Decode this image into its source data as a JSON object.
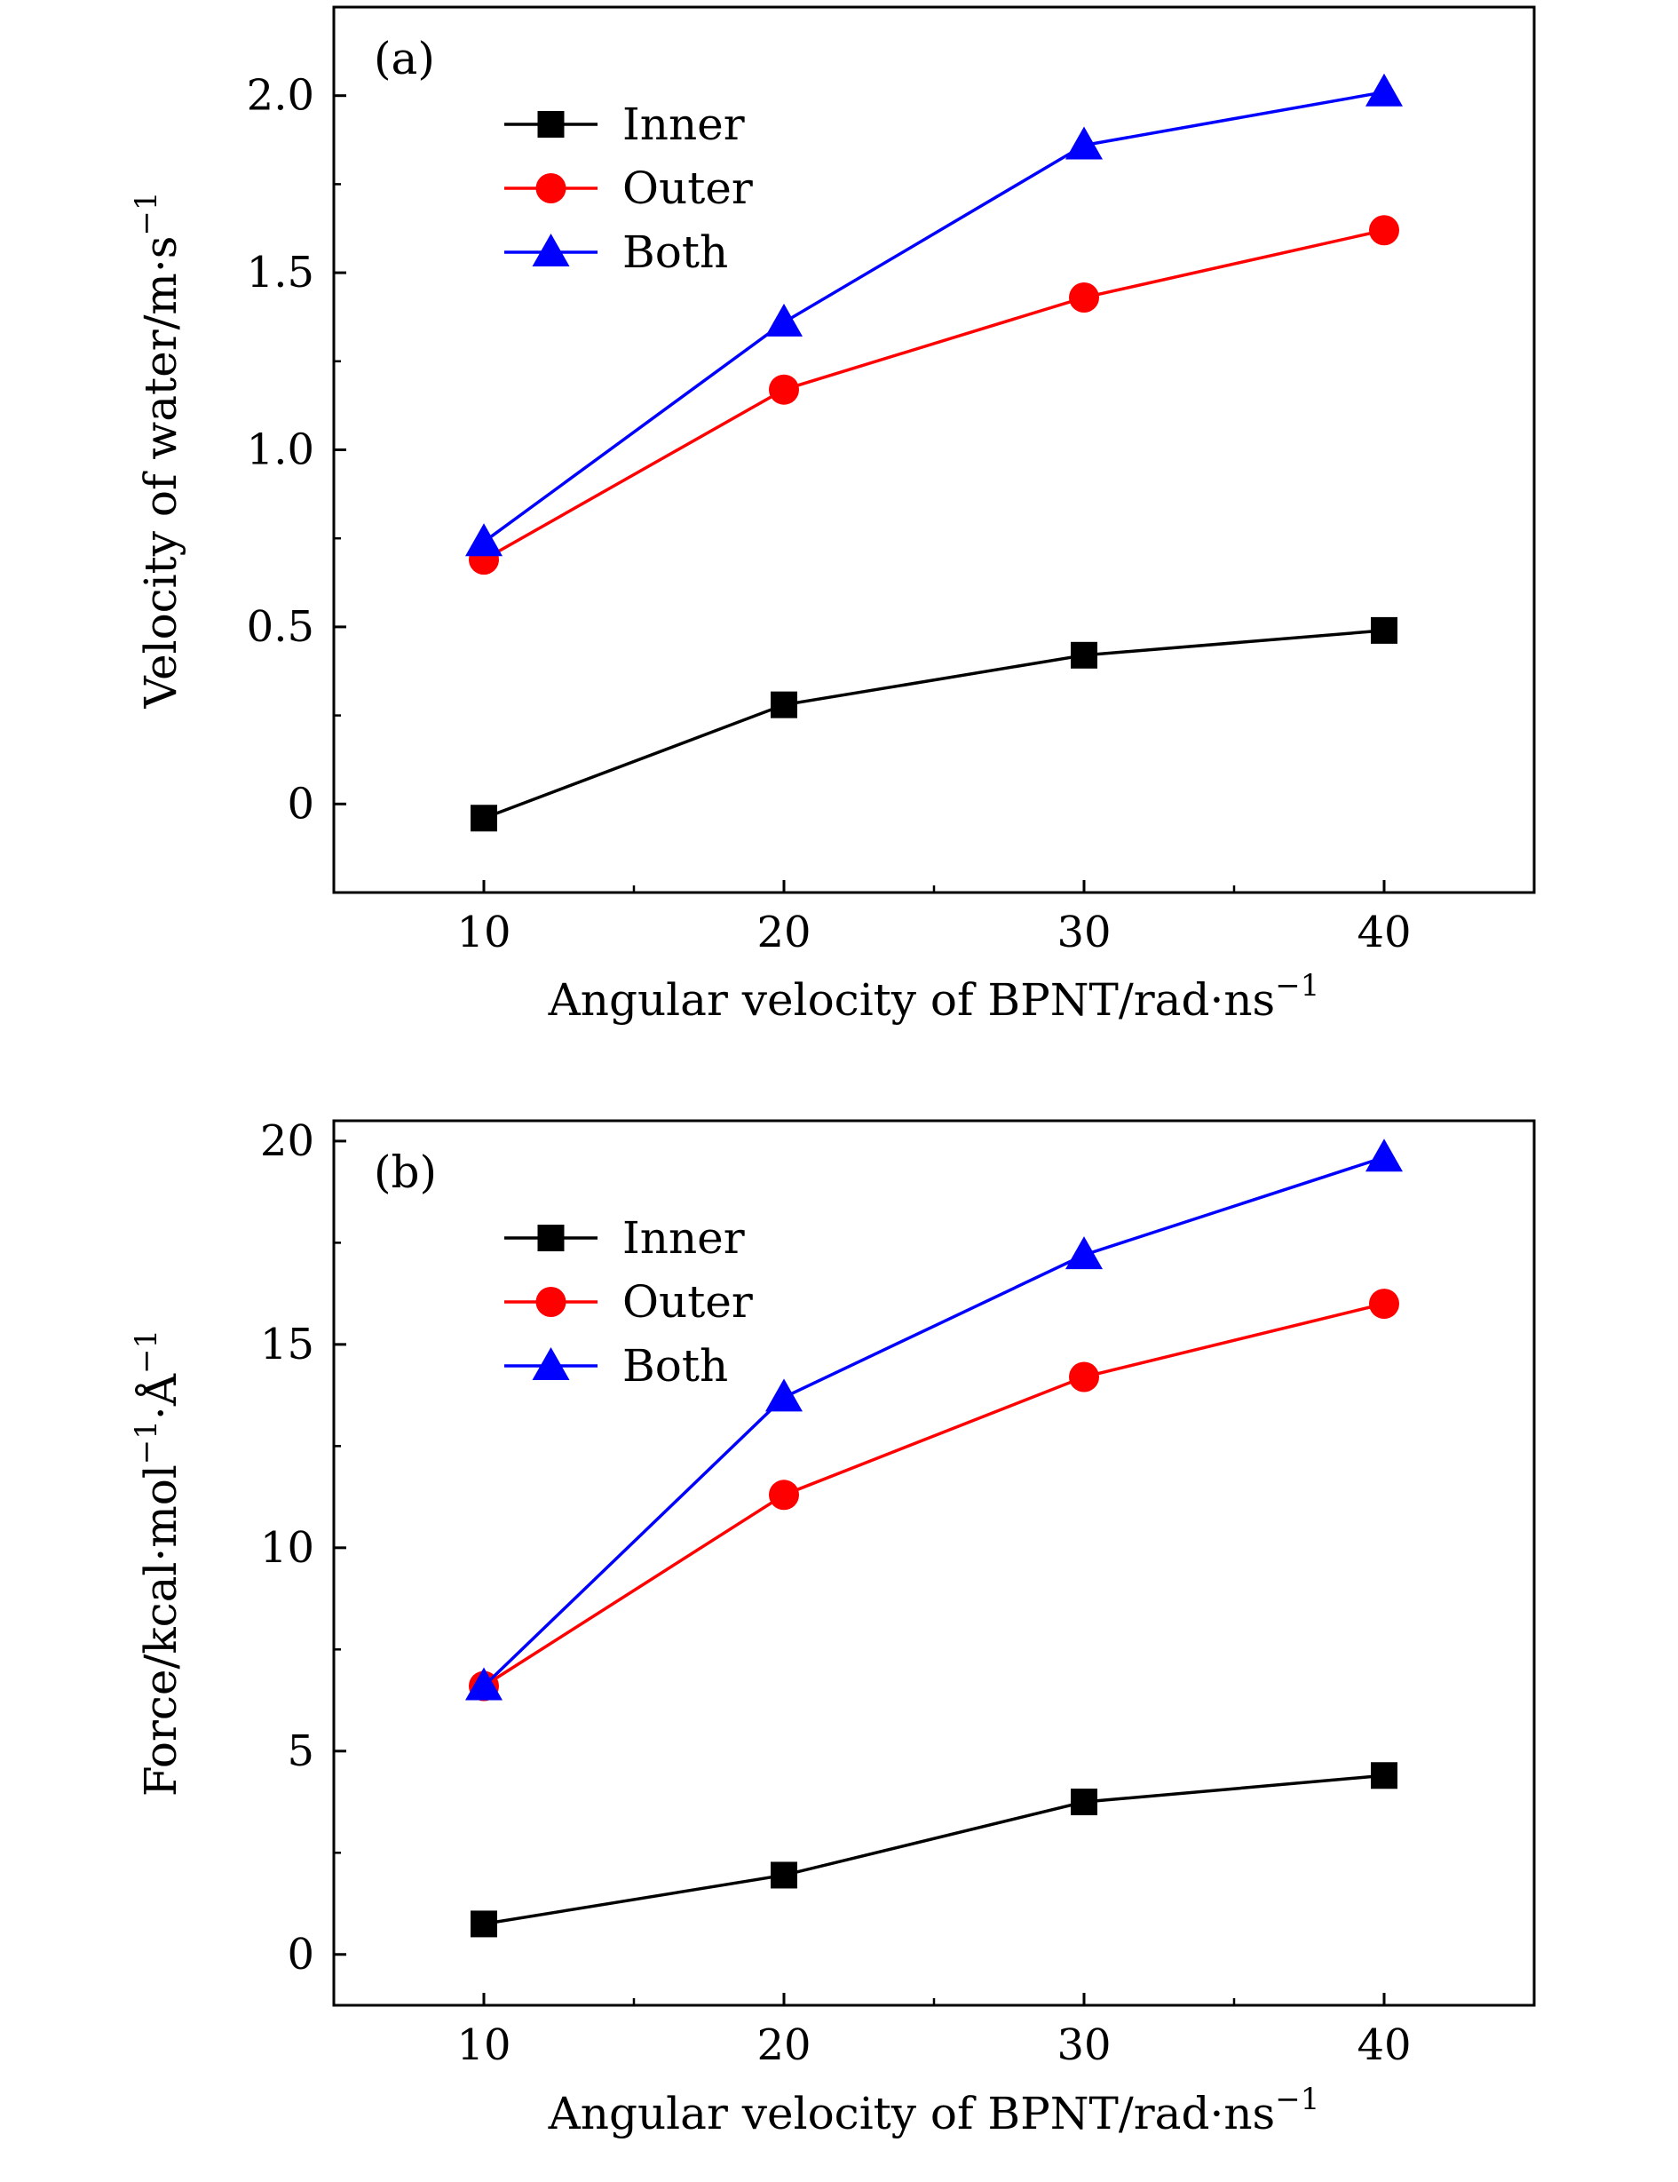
{
  "chart_data": [
    {
      "type": "line",
      "panel_label": "(a)",
      "xlabel": "Angular velocity of BPNT/rad·ns",
      "xlabel_sup": "−1",
      "ylabel": "Velocity of water/m·s",
      "ylabel_sup": "−1",
      "x": [
        10,
        20,
        30,
        40
      ],
      "xlim": [
        5,
        45
      ],
      "ylim": [
        -0.25,
        2.25
      ],
      "xticks": [
        10,
        20,
        30,
        40
      ],
      "xtick_labels": [
        "10",
        "20",
        "30",
        "40"
      ],
      "yticks": [
        0,
        0.5,
        1.0,
        1.5,
        2.0
      ],
      "ytick_labels": [
        "0",
        "0.5",
        "1.0",
        "1.5",
        "2.0"
      ],
      "grid": false,
      "legend_position": "top-left",
      "series": [
        {
          "name": "Inner",
          "color": "#000000",
          "marker": "square",
          "values": [
            -0.04,
            0.28,
            0.42,
            0.49
          ]
        },
        {
          "name": "Outer",
          "color": "#ff0000",
          "marker": "circle",
          "values": [
            0.69,
            1.17,
            1.43,
            1.62
          ]
        },
        {
          "name": "Both",
          "color": "#0000ff",
          "marker": "triangle",
          "values": [
            0.74,
            1.36,
            1.86,
            2.01
          ]
        }
      ]
    },
    {
      "type": "line",
      "panel_label": "(b)",
      "xlabel": "Angular velocity of BPNT/rad·ns",
      "xlabel_sup": "−1",
      "ylabel": "Force/kcal·mol",
      "ylabel_sup": "−1",
      "ylabel_mid": "·Å",
      "ylabel_sup2": "−1",
      "x": [
        10,
        20,
        30,
        40
      ],
      "xlim": [
        5,
        45
      ],
      "ylim": [
        -1.25,
        20.5
      ],
      "xticks": [
        10,
        20,
        30,
        40
      ],
      "xtick_labels": [
        "10",
        "20",
        "30",
        "40"
      ],
      "yticks": [
        0,
        5,
        10,
        15,
        20
      ],
      "ytick_labels": [
        "0",
        "5",
        "10",
        "15",
        "20"
      ],
      "grid": false,
      "legend_position": "top-left",
      "series": [
        {
          "name": "Inner",
          "color": "#000000",
          "marker": "square",
          "values": [
            0.75,
            1.95,
            3.75,
            4.4
          ]
        },
        {
          "name": "Outer",
          "color": "#ff0000",
          "marker": "circle",
          "values": [
            6.6,
            11.3,
            14.2,
            16.0
          ]
        },
        {
          "name": "Both",
          "color": "#0000ff",
          "marker": "triangle",
          "values": [
            6.6,
            13.7,
            17.2,
            19.6
          ]
        }
      ]
    }
  ]
}
